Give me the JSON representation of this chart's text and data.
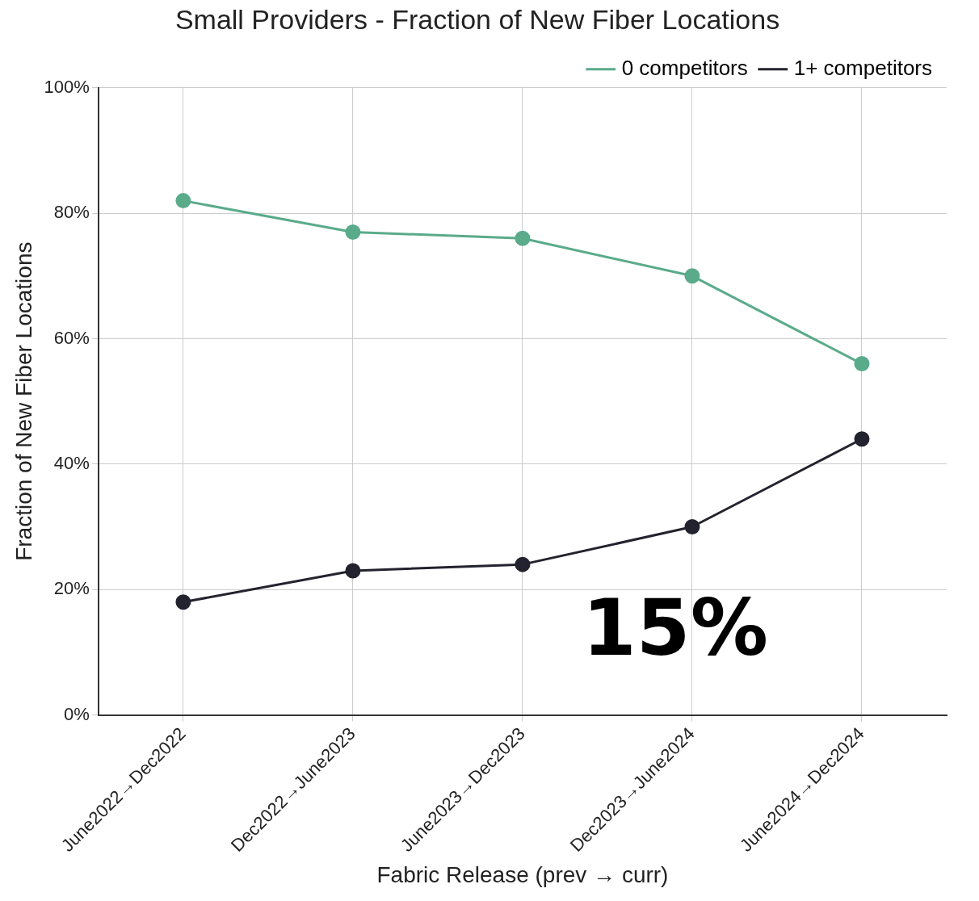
{
  "chart_data": {
    "type": "line",
    "title": "Small Providers - Fraction of New Fiber Locations",
    "xlabel": "Fabric Release (prev → curr)",
    "ylabel": "Fraction of New Fiber Locations",
    "categories": [
      "June2022→Dec2022",
      "Dec2022→June2023",
      "June2023→Dec2023",
      "Dec2023→June2024",
      "June2024→Dec2024"
    ],
    "series": [
      {
        "name": "0 competitors",
        "color": "#5aab8a",
        "values": [
          82,
          77,
          76,
          70,
          56
        ]
      },
      {
        "name": "1+ competitors",
        "color": "#23232f",
        "values": [
          18,
          23,
          24,
          30,
          44
        ]
      }
    ],
    "ylim": [
      0,
      100
    ],
    "yticks": [
      {
        "value": 0,
        "label": "0%"
      },
      {
        "value": 20,
        "label": "20%"
      },
      {
        "value": 40,
        "label": "40%"
      },
      {
        "value": 60,
        "label": "60%"
      },
      {
        "value": 80,
        "label": "80%"
      },
      {
        "value": 100,
        "label": "100%"
      }
    ],
    "grid": true,
    "legend": "top right",
    "marker": "circle",
    "line_style": "solid",
    "annotations": [
      "15%"
    ]
  }
}
